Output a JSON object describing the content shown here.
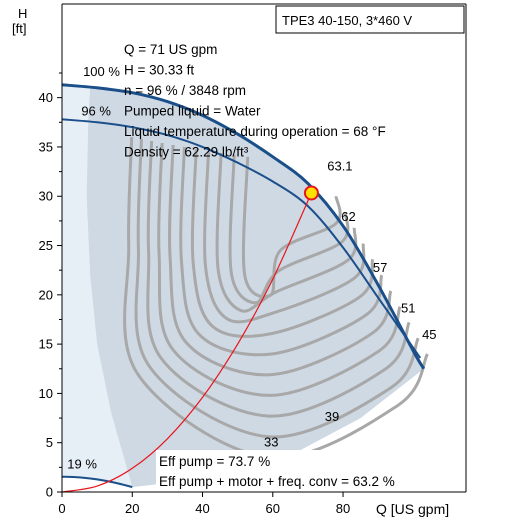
{
  "chart_data": {
    "type": "line",
    "title": "TPE3 40-150, 3*460 V",
    "xlabel": "Q [US gpm]",
    "ylabel_top": "H",
    "ylabel_bottom": "[ft]",
    "xlim": [
      0,
      115
    ],
    "ylim": [
      0,
      49.5
    ],
    "x_ticks": [
      0,
      20,
      40,
      60,
      80
    ],
    "y_ticks": [
      0,
      5,
      10,
      15,
      20,
      25,
      30,
      35,
      40
    ],
    "x_tick_labels": [
      "0",
      "20",
      "40",
      "60",
      "80"
    ],
    "y_tick_labels": [
      "0",
      "5",
      "10",
      "15",
      "20",
      "25",
      "30",
      "35",
      "40"
    ],
    "grid": false,
    "colors": {
      "operating_region": "#cfd9e4",
      "operating_region_light": "#e6eef6",
      "pump_curve": "#1a4f8a",
      "efficiency_contours": "#a8a8a8",
      "system_curve": "#e8151b",
      "duty_point_fill": "#ffe000",
      "duty_point_stroke": "#e8151b"
    },
    "info_box": {
      "lines": [
        "Q = 71 US gpm",
        "H = 30.33 ft",
        "n = 96 % / 3848 rpm",
        "Pumped liquid = Water",
        "Liquid temperature during operation = 68 °F",
        "Density = 62.29 lb/ft³"
      ]
    },
    "efficiency_box": {
      "lines": [
        "Eff pump = 73.7 %",
        "Eff pump + motor + freq. conv = 63.2 %"
      ]
    },
    "duty_point": {
      "x": 71,
      "y": 30.33
    },
    "speed_curves": [
      {
        "name": "100 %",
        "x": [
          0,
          10,
          20,
          30,
          40,
          50,
          60,
          70,
          80,
          90,
          100,
          103
        ],
        "y": [
          41.3,
          41.0,
          40.5,
          39.6,
          38.2,
          36.3,
          34.0,
          31.3,
          27.0,
          21.0,
          14.3,
          12.5
        ]
      },
      {
        "name": "96 %",
        "x": [
          0,
          10,
          20,
          30,
          40,
          50,
          60,
          70,
          80,
          90,
          102
        ],
        "y": [
          37.8,
          37.5,
          37.0,
          36.2,
          35.0,
          33.4,
          31.5,
          29.0,
          24.8,
          19.7,
          13.6
        ]
      },
      {
        "name": "19 %",
        "x": [
          0,
          5,
          10,
          15,
          20
        ],
        "y": [
          1.55,
          1.48,
          1.28,
          0.95,
          0.5
        ]
      }
    ],
    "system_curve": {
      "x": [
        0,
        10,
        20,
        30,
        40,
        50,
        60,
        71
      ],
      "y": [
        0,
        0.6,
        2.4,
        5.4,
        9.6,
        15.0,
        21.6,
        30.33
      ]
    },
    "efficiency_contour_labels": [
      {
        "label": "63.1",
        "x": 75.5,
        "y": 32.6
      },
      {
        "label": "62",
        "x": 79.5,
        "y": 27.5
      },
      {
        "label": "57",
        "x": 88.5,
        "y": 22.3
      },
      {
        "label": "51",
        "x": 96.5,
        "y": 18.2
      },
      {
        "label": "45",
        "x": 102.5,
        "y": 15.5
      },
      {
        "label": "39",
        "x": 74.8,
        "y": 7.2
      },
      {
        "label": "33",
        "x": 57.5,
        "y": 4.6
      }
    ]
  }
}
